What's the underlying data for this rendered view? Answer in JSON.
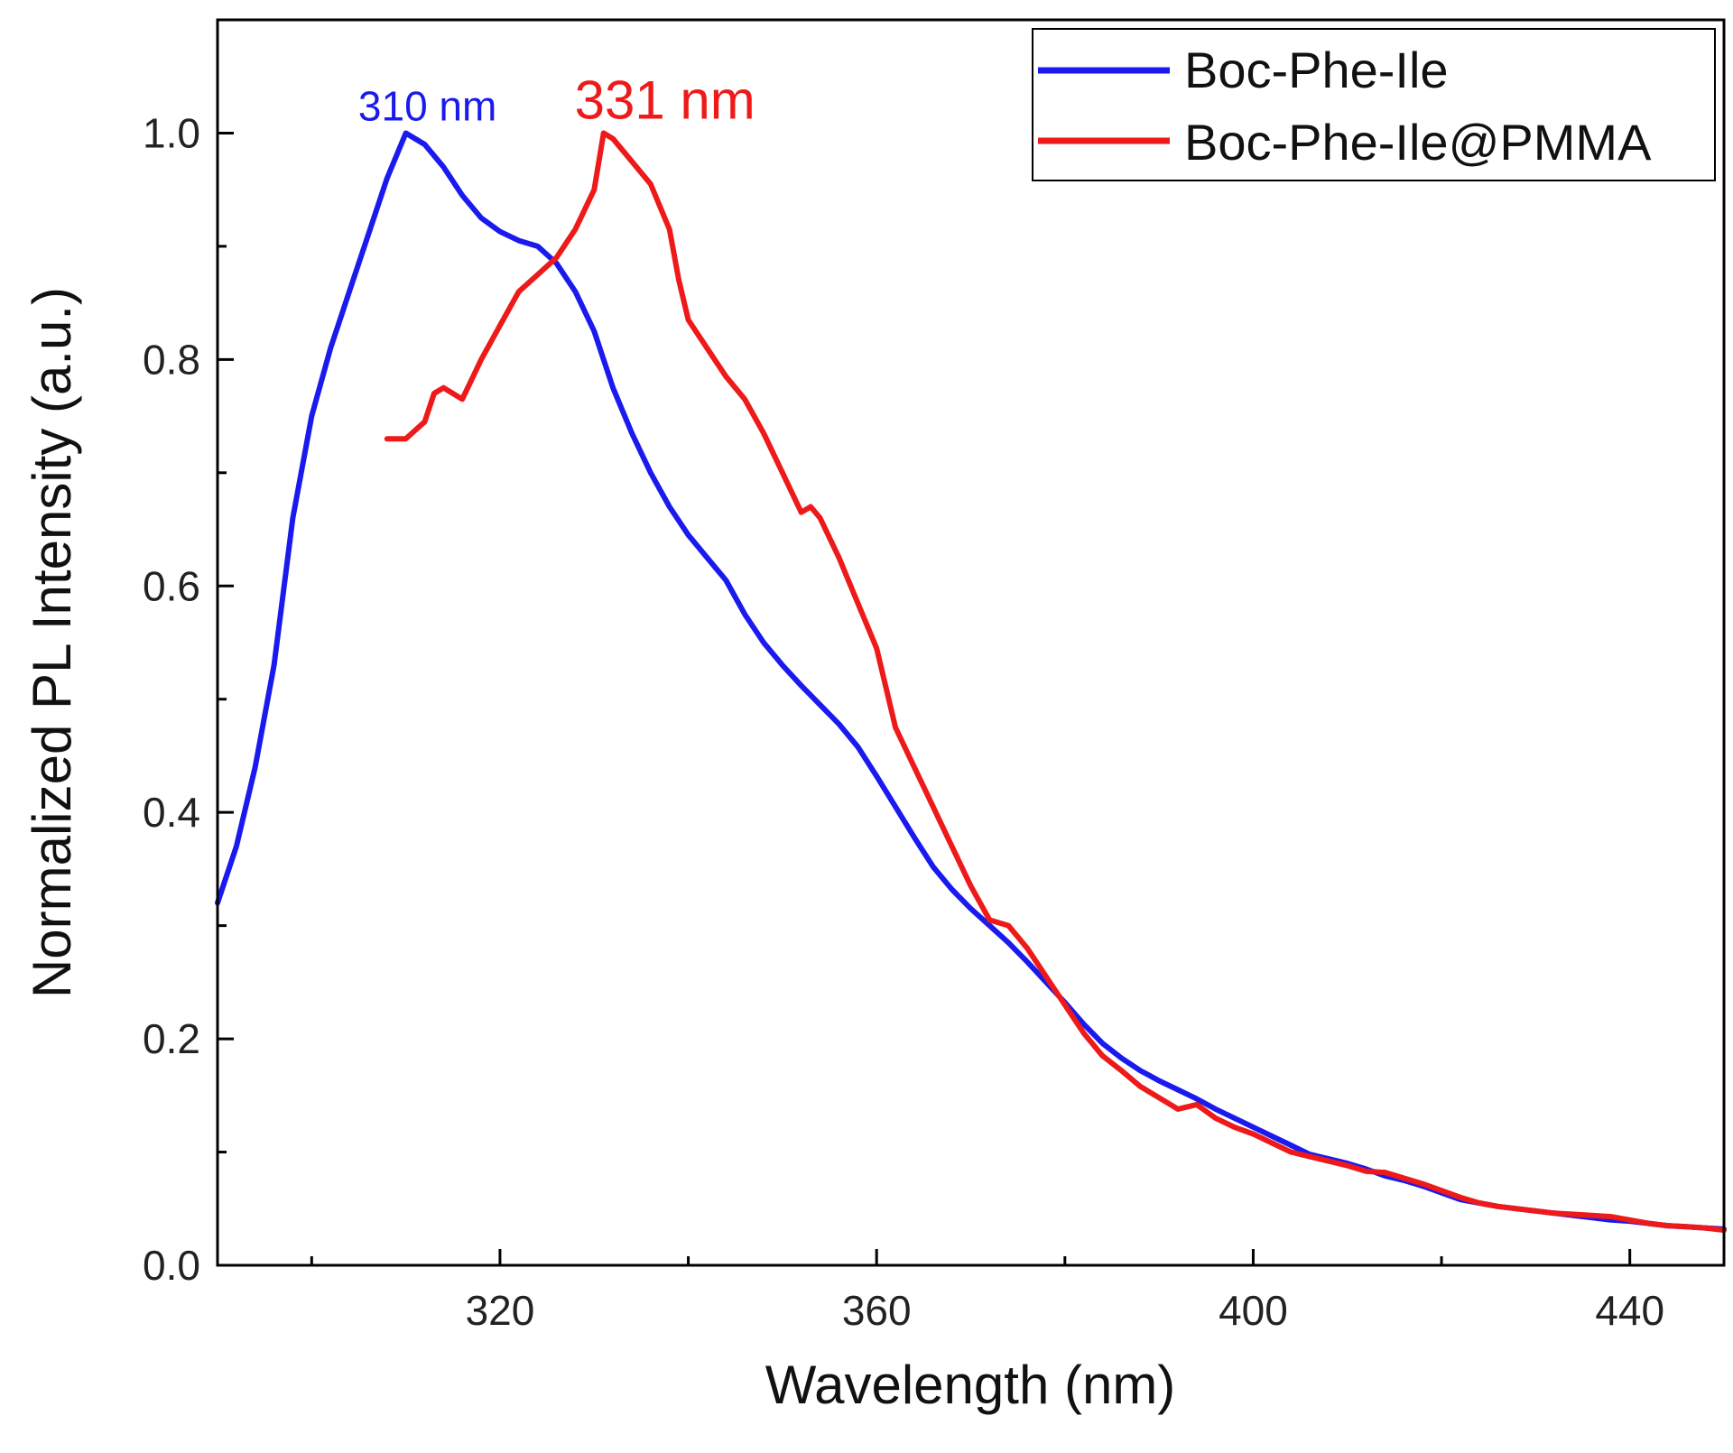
{
  "chart_data": {
    "type": "line",
    "title": "",
    "xlabel": "Wavelength (nm)",
    "ylabel": "Normalized PL Intensity (a.u.)",
    "xlim": [
      290,
      450
    ],
    "ylim": [
      0.0,
      1.1
    ],
    "x_ticks": [
      320,
      360,
      400,
      440
    ],
    "x_tick_labels": [
      "320",
      "360",
      "400",
      "440"
    ],
    "y_ticks": [
      0.0,
      0.2,
      0.4,
      0.6,
      0.8,
      1.0
    ],
    "y_tick_labels": [
      "0.0",
      "0.2",
      "0.4",
      "0.6",
      "0.8",
      "1.0"
    ],
    "grid": false,
    "legend_position": "top-right",
    "series": [
      {
        "name": "Boc-Phe-Ile",
        "color": "#1a1aee",
        "points": [
          [
            290,
            0.32
          ],
          [
            292,
            0.37
          ],
          [
            294,
            0.44
          ],
          [
            296,
            0.53
          ],
          [
            298,
            0.66
          ],
          [
            300,
            0.75
          ],
          [
            302,
            0.81
          ],
          [
            304,
            0.86
          ],
          [
            306,
            0.91
          ],
          [
            308,
            0.96
          ],
          [
            310,
            1.0
          ],
          [
            312,
            0.99
          ],
          [
            314,
            0.97
          ],
          [
            316,
            0.945
          ],
          [
            318,
            0.925
          ],
          [
            320,
            0.913
          ],
          [
            322,
            0.905
          ],
          [
            324,
            0.9
          ],
          [
            326,
            0.885
          ],
          [
            328,
            0.86
          ],
          [
            330,
            0.825
          ],
          [
            332,
            0.775
          ],
          [
            334,
            0.735
          ],
          [
            336,
            0.7
          ],
          [
            338,
            0.67
          ],
          [
            340,
            0.645
          ],
          [
            342,
            0.625
          ],
          [
            344,
            0.605
          ],
          [
            346,
            0.575
          ],
          [
            348,
            0.55
          ],
          [
            350,
            0.53
          ],
          [
            352,
            0.512
          ],
          [
            354,
            0.495
          ],
          [
            356,
            0.478
          ],
          [
            358,
            0.458
          ],
          [
            360,
            0.432
          ],
          [
            362,
            0.405
          ],
          [
            364,
            0.378
          ],
          [
            366,
            0.352
          ],
          [
            368,
            0.332
          ],
          [
            370,
            0.315
          ],
          [
            372,
            0.3
          ],
          [
            374,
            0.285
          ],
          [
            376,
            0.268
          ],
          [
            378,
            0.25
          ],
          [
            380,
            0.232
          ],
          [
            382,
            0.213
          ],
          [
            384,
            0.196
          ],
          [
            386,
            0.183
          ],
          [
            388,
            0.172
          ],
          [
            390,
            0.163
          ],
          [
            392,
            0.155
          ],
          [
            394,
            0.147
          ],
          [
            396,
            0.138
          ],
          [
            398,
            0.13
          ],
          [
            400,
            0.122
          ],
          [
            402,
            0.114
          ],
          [
            404,
            0.106
          ],
          [
            406,
            0.098
          ],
          [
            408,
            0.094
          ],
          [
            410,
            0.09
          ],
          [
            412,
            0.085
          ],
          [
            414,
            0.079
          ],
          [
            416,
            0.075
          ],
          [
            418,
            0.07
          ],
          [
            420,
            0.064
          ],
          [
            422,
            0.058
          ],
          [
            424,
            0.055
          ],
          [
            426,
            0.052
          ],
          [
            428,
            0.05
          ],
          [
            430,
            0.048
          ],
          [
            432,
            0.046
          ],
          [
            434,
            0.044
          ],
          [
            436,
            0.042
          ],
          [
            438,
            0.04
          ],
          [
            440,
            0.039
          ],
          [
            442,
            0.037
          ],
          [
            444,
            0.035
          ],
          [
            446,
            0.034
          ],
          [
            448,
            0.033
          ],
          [
            450,
            0.032
          ]
        ]
      },
      {
        "name": "Boc-Phe-Ile@PMMA",
        "color": "#ee1a1a",
        "points": [
          [
            308,
            0.73
          ],
          [
            310,
            0.73
          ],
          [
            312,
            0.745
          ],
          [
            313,
            0.77
          ],
          [
            314,
            0.775
          ],
          [
            316,
            0.765
          ],
          [
            318,
            0.8
          ],
          [
            320,
            0.83
          ],
          [
            322,
            0.86
          ],
          [
            324,
            0.875
          ],
          [
            326,
            0.89
          ],
          [
            328,
            0.915
          ],
          [
            330,
            0.95
          ],
          [
            331,
            1.0
          ],
          [
            332,
            0.995
          ],
          [
            334,
            0.975
          ],
          [
            336,
            0.955
          ],
          [
            338,
            0.915
          ],
          [
            339,
            0.87
          ],
          [
            340,
            0.835
          ],
          [
            342,
            0.81
          ],
          [
            344,
            0.785
          ],
          [
            346,
            0.765
          ],
          [
            348,
            0.735
          ],
          [
            350,
            0.7
          ],
          [
            352,
            0.665
          ],
          [
            353,
            0.67
          ],
          [
            354,
            0.66
          ],
          [
            356,
            0.625
          ],
          [
            358,
            0.585
          ],
          [
            360,
            0.545
          ],
          [
            362,
            0.475
          ],
          [
            364,
            0.44
          ],
          [
            366,
            0.405
          ],
          [
            368,
            0.37
          ],
          [
            370,
            0.335
          ],
          [
            372,
            0.305
          ],
          [
            374,
            0.3
          ],
          [
            376,
            0.28
          ],
          [
            378,
            0.255
          ],
          [
            380,
            0.23
          ],
          [
            382,
            0.205
          ],
          [
            384,
            0.185
          ],
          [
            386,
            0.172
          ],
          [
            388,
            0.158
          ],
          [
            390,
            0.148
          ],
          [
            392,
            0.138
          ],
          [
            394,
            0.142
          ],
          [
            396,
            0.13
          ],
          [
            398,
            0.122
          ],
          [
            400,
            0.116
          ],
          [
            402,
            0.108
          ],
          [
            404,
            0.1
          ],
          [
            406,
            0.096
          ],
          [
            408,
            0.092
          ],
          [
            410,
            0.088
          ],
          [
            412,
            0.083
          ],
          [
            414,
            0.082
          ],
          [
            416,
            0.077
          ],
          [
            418,
            0.072
          ],
          [
            420,
            0.066
          ],
          [
            422,
            0.06
          ],
          [
            424,
            0.055
          ],
          [
            426,
            0.052
          ],
          [
            428,
            0.05
          ],
          [
            430,
            0.048
          ],
          [
            432,
            0.046
          ],
          [
            434,
            0.045
          ],
          [
            436,
            0.044
          ],
          [
            438,
            0.043
          ],
          [
            440,
            0.04
          ],
          [
            442,
            0.037
          ],
          [
            444,
            0.035
          ],
          [
            446,
            0.034
          ],
          [
            448,
            0.033
          ],
          [
            450,
            0.031
          ]
        ]
      }
    ],
    "annotations": [
      {
        "text": "310 nm",
        "x": 310,
        "y": 1.0,
        "color": "#1a1aee"
      },
      {
        "text": "331 nm",
        "x": 331,
        "y": 1.0,
        "color": "#ee1a1a"
      }
    ]
  }
}
